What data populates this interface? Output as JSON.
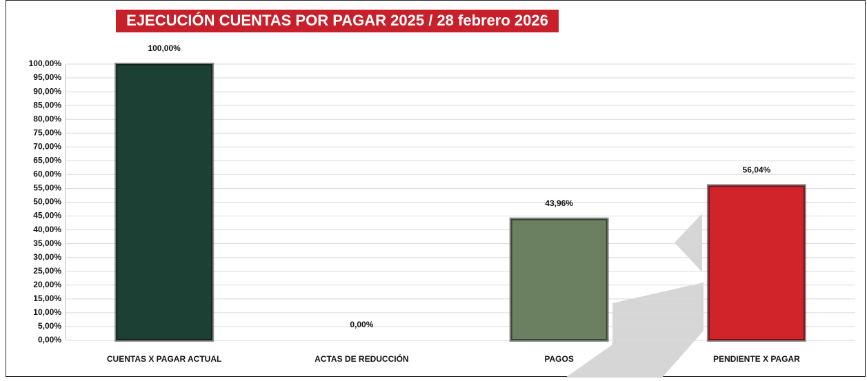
{
  "chart_data": {
    "type": "bar",
    "title": "EJECUCIÓN CUENTAS POR PAGAR 2025 /  28 febrero 2026",
    "categories": [
      "CUENTAS X PAGAR ACTUAL",
      "ACTAS DE REDUCCIÓN",
      "PAGOS",
      "PENDIENTE X PAGAR"
    ],
    "values": [
      100,
      0,
      43.96,
      56.04
    ],
    "value_labels": [
      "100,00%",
      "0,00%",
      "43,96%",
      "56,04%"
    ],
    "colors": [
      "#1c4033",
      "#1c4033",
      "#6a8060",
      "#d0232a"
    ],
    "ylim": [
      0,
      100
    ],
    "yticks": [
      {
        "value": 0,
        "label": "0,00%"
      },
      {
        "value": 5,
        "label": "5,00%"
      },
      {
        "value": 10,
        "label": "10,00%"
      },
      {
        "value": 15,
        "label": "15,00%"
      },
      {
        "value": 20,
        "label": "20,00%"
      },
      {
        "value": 25,
        "label": "25,00%"
      },
      {
        "value": 30,
        "label": "30,00%"
      },
      {
        "value": 35,
        "label": "35,00%"
      },
      {
        "value": 40,
        "label": "40,00%"
      },
      {
        "value": 45,
        "label": "45,00%"
      },
      {
        "value": 50,
        "label": "50,00%"
      },
      {
        "value": 55,
        "label": "55,00%"
      },
      {
        "value": 60,
        "label": "60,00%"
      },
      {
        "value": 65,
        "label": "65,00%"
      },
      {
        "value": 70,
        "label": "70,00%"
      },
      {
        "value": 75,
        "label": "75,00%"
      },
      {
        "value": 80,
        "label": "80,00%"
      },
      {
        "value": 85,
        "label": "85,00%"
      },
      {
        "value": 90,
        "label": "90,00%"
      },
      {
        "value": 95,
        "label": "95,00%"
      },
      {
        "value": 100,
        "label": "100,00%"
      }
    ],
    "grid": true
  }
}
